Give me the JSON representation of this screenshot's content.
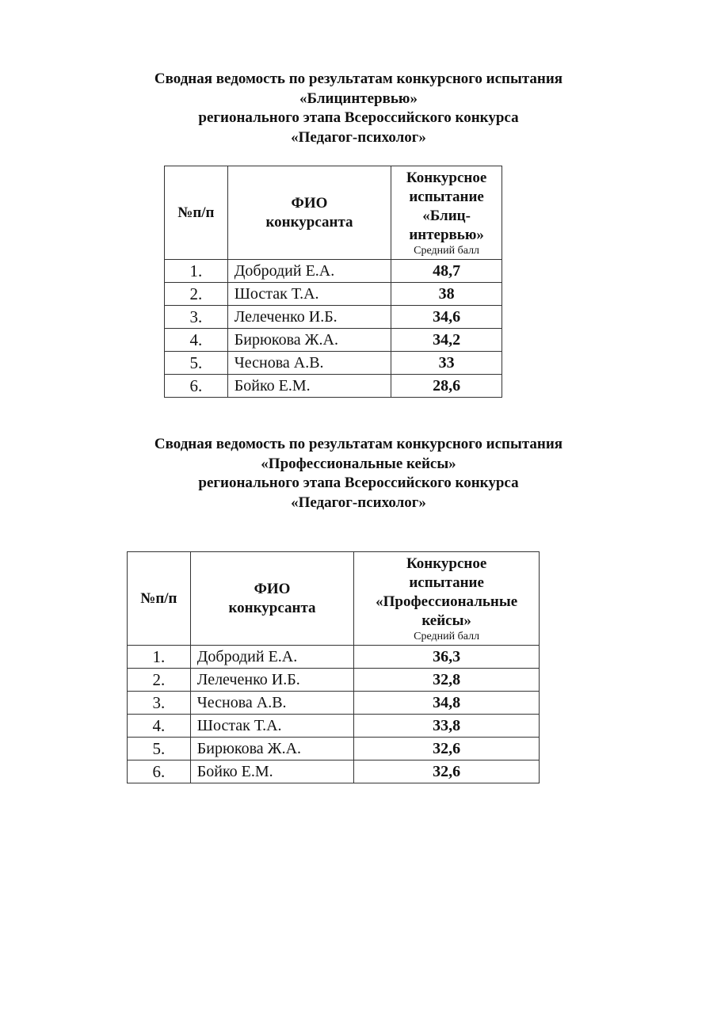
{
  "sections": [
    {
      "title_lines": [
        "Сводная ведомость по результатам конкурсного испытания",
        "«Блицинтервью»",
        "регионального этапа Всероссийского конкурса",
        "«Педагог-психолог»"
      ],
      "table": {
        "headers": {
          "num": "№п/п",
          "fio_line1": "ФИО",
          "fio_line2": "конкурсанта",
          "test_lines": [
            "Конкурсное",
            "испытание",
            "«Блиц-",
            "интервью»"
          ],
          "test_sub": "Средний балл"
        },
        "rows": [
          {
            "num": "1.",
            "name": "Добродий Е.А.",
            "score": "48,7"
          },
          {
            "num": "2.",
            "name": "Шостак Т.А.",
            "score": "38"
          },
          {
            "num": "3.",
            "name": "Лелеченко И.Б.",
            "score": "34,6"
          },
          {
            "num": "4.",
            "name": "Бирюкова Ж.А.",
            "score": "34,2"
          },
          {
            "num": "5.",
            "name": "Чеснова А.В.",
            "score": "33"
          },
          {
            "num": "6.",
            "name": "Бойко Е.М.",
            "score": "28,6"
          }
        ]
      }
    },
    {
      "title_lines": [
        "Сводная ведомость по результатам конкурсного испытания",
        "«Профессиональные кейсы»",
        "регионального этапа Всероссийского конкурса",
        "«Педагог-психолог»"
      ],
      "table": {
        "headers": {
          "num": "№п/п",
          "fio_line1": "ФИО",
          "fio_line2": "конкурсанта",
          "test_lines": [
            "Конкурсное",
            "испытание",
            "«Профессиональные",
            "кейсы»"
          ],
          "test_sub": "Средний балл"
        },
        "rows": [
          {
            "num": "1.",
            "name": "Добродий Е.А.",
            "score": "36,3"
          },
          {
            "num": "2.",
            "name": "Лелеченко И.Б.",
            "score": "32,8"
          },
          {
            "num": "3.",
            "name": "Чеснова А.В.",
            "score": "34,8"
          },
          {
            "num": "4.",
            "name": "Шостак Т.А.",
            "score": "33,8"
          },
          {
            "num": "5.",
            "name": "Бирюкова Ж.А.",
            "score": "32,6"
          },
          {
            "num": "6.",
            "name": "Бойко Е.М.",
            "score": "32,6"
          }
        ]
      }
    }
  ]
}
